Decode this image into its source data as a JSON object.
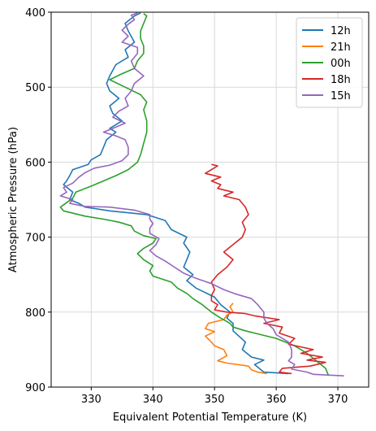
{
  "chart_data": {
    "type": "line",
    "xlabel": "Equivalent Potential Temperature (K)",
    "ylabel": "Atmospheric Pressure (hPa)",
    "xlim": [
      323.5,
      375
    ],
    "ylim": [
      900,
      400
    ],
    "y_inverted": true,
    "grid": true,
    "legend_position": "top-right",
    "xticks": [
      330,
      340,
      350,
      360,
      370
    ],
    "xtick_labels": [
      "330",
      "340",
      "350",
      "360",
      "370"
    ],
    "yticks": [
      400,
      500,
      600,
      700,
      800,
      900
    ],
    "ytick_labels": [
      "400",
      "500",
      "600",
      "700",
      "800",
      "900"
    ],
    "series": [
      {
        "name": "12h",
        "color": "#1f77b4",
        "points": [
          [
            362.0,
            882
          ],
          [
            358.0,
            880
          ],
          [
            356.5,
            870
          ],
          [
            358.0,
            864
          ],
          [
            356.0,
            860
          ],
          [
            354.5,
            850
          ],
          [
            355.0,
            840
          ],
          [
            353.0,
            825
          ],
          [
            353.0,
            815
          ],
          [
            352.0,
            808
          ],
          [
            352.5,
            800
          ],
          [
            351.0,
            790
          ],
          [
            350.0,
            780
          ],
          [
            347.0,
            768
          ],
          [
            345.5,
            758
          ],
          [
            346.5,
            750
          ],
          [
            345.0,
            740
          ],
          [
            345.5,
            730
          ],
          [
            346.0,
            720
          ],
          [
            345.0,
            708
          ],
          [
            345.5,
            700
          ],
          [
            343.0,
            690
          ],
          [
            342.0,
            678
          ],
          [
            339.0,
            670
          ],
          [
            333.0,
            665
          ],
          [
            329.0,
            660
          ],
          [
            328.0,
            655
          ],
          [
            326.5,
            650
          ],
          [
            327.0,
            640
          ],
          [
            325.5,
            630
          ],
          [
            326.0,
            625
          ],
          [
            326.5,
            618
          ],
          [
            327.0,
            610
          ],
          [
            329.5,
            603
          ],
          [
            330.0,
            597
          ],
          [
            331.5,
            590
          ],
          [
            332.0,
            580
          ],
          [
            332.5,
            570
          ],
          [
            334.0,
            560
          ],
          [
            333.0,
            555
          ],
          [
            335.0,
            545
          ],
          [
            333.5,
            535
          ],
          [
            333.0,
            525
          ],
          [
            334.5,
            515
          ],
          [
            333.0,
            505
          ],
          [
            332.5,
            495
          ],
          [
            333.0,
            485
          ],
          [
            334.0,
            470
          ],
          [
            336.0,
            460
          ],
          [
            335.5,
            450
          ],
          [
            337.0,
            440
          ],
          [
            336.0,
            425
          ],
          [
            335.5,
            415
          ],
          [
            337.0,
            405
          ],
          [
            338.0,
            401
          ]
        ]
      },
      {
        "name": "21h",
        "color": "#ff7f0e",
        "points": [
          [
            358.5,
            882
          ],
          [
            357.0,
            880
          ],
          [
            356.0,
            877
          ],
          [
            355.5,
            872
          ],
          [
            352.0,
            868
          ],
          [
            350.5,
            865
          ],
          [
            352.0,
            858
          ],
          [
            351.5,
            850
          ],
          [
            350.0,
            845
          ],
          [
            349.5,
            840
          ],
          [
            348.5,
            832
          ],
          [
            350.0,
            826
          ],
          [
            348.5,
            822
          ],
          [
            349.0,
            815
          ],
          [
            351.5,
            810
          ],
          [
            352.0,
            804
          ],
          [
            353.0,
            800
          ],
          [
            352.5,
            793
          ],
          [
            353.0,
            788
          ]
        ]
      },
      {
        "name": "00h",
        "color": "#2ca02c",
        "points": [
          [
            368.5,
            885
          ],
          [
            368.0,
            875
          ],
          [
            366.5,
            865
          ],
          [
            365.0,
            855
          ],
          [
            363.0,
            845
          ],
          [
            360.0,
            835
          ],
          [
            357.5,
            830
          ],
          [
            355.0,
            825
          ],
          [
            353.0,
            820
          ],
          [
            352.5,
            815
          ],
          [
            351.0,
            808
          ],
          [
            349.5,
            800
          ],
          [
            348.0,
            790
          ],
          [
            346.5,
            782
          ],
          [
            345.5,
            775
          ],
          [
            344.0,
            768
          ],
          [
            343.0,
            760
          ],
          [
            340.0,
            752
          ],
          [
            339.5,
            745
          ],
          [
            340.0,
            738
          ],
          [
            338.5,
            730
          ],
          [
            337.5,
            722
          ],
          [
            338.5,
            715
          ],
          [
            340.0,
            708
          ],
          [
            340.5,
            702
          ],
          [
            338.5,
            698
          ],
          [
            337.0,
            692
          ],
          [
            336.5,
            685
          ],
          [
            334.5,
            680
          ],
          [
            332.0,
            676
          ],
          [
            329.0,
            672
          ],
          [
            325.5,
            665
          ],
          [
            325.0,
            660
          ],
          [
            326.0,
            654
          ],
          [
            327.0,
            648
          ],
          [
            327.5,
            640
          ],
          [
            330.0,
            632
          ],
          [
            332.0,
            625
          ],
          [
            334.0,
            618
          ],
          [
            336.0,
            610
          ],
          [
            337.5,
            600
          ],
          [
            338.0,
            590
          ],
          [
            338.5,
            575
          ],
          [
            339.0,
            560
          ],
          [
            339.0,
            545
          ],
          [
            338.5,
            530
          ],
          [
            339.0,
            520
          ],
          [
            338.0,
            510
          ],
          [
            335.5,
            500
          ],
          [
            333.0,
            490
          ],
          [
            335.0,
            482
          ],
          [
            337.0,
            475
          ],
          [
            337.5,
            465
          ],
          [
            338.5,
            455
          ],
          [
            338.5,
            445
          ],
          [
            338.0,
            435
          ],
          [
            338.0,
            425
          ],
          [
            338.5,
            415
          ],
          [
            339.0,
            405
          ],
          [
            338.5,
            402
          ]
        ]
      },
      {
        "name": "18h",
        "color": "#d62728",
        "points": [
          [
            362.5,
            882
          ],
          [
            360.5,
            880
          ],
          [
            361.0,
            875
          ],
          [
            365.5,
            872
          ],
          [
            368.0,
            867
          ],
          [
            365.0,
            864
          ],
          [
            367.5,
            860
          ],
          [
            364.0,
            855
          ],
          [
            366.0,
            850
          ],
          [
            362.0,
            843
          ],
          [
            363.0,
            835
          ],
          [
            360.5,
            828
          ],
          [
            361.0,
            820
          ],
          [
            358.0,
            815
          ],
          [
            360.5,
            810
          ],
          [
            356.5,
            805
          ],
          [
            355.0,
            802
          ],
          [
            352.0,
            800
          ],
          [
            350.0,
            797
          ],
          [
            350.5,
            790
          ],
          [
            349.5,
            785
          ],
          [
            349.5,
            778
          ],
          [
            350.0,
            770
          ],
          [
            349.5,
            760
          ],
          [
            350.5,
            750
          ],
          [
            352.0,
            740
          ],
          [
            353.0,
            730
          ],
          [
            351.5,
            720
          ],
          [
            353.0,
            710
          ],
          [
            354.5,
            700
          ],
          [
            355.0,
            690
          ],
          [
            354.5,
            680
          ],
          [
            355.5,
            670
          ],
          [
            355.0,
            660
          ],
          [
            354.0,
            650
          ],
          [
            351.5,
            645
          ],
          [
            353.0,
            640
          ],
          [
            350.5,
            635
          ],
          [
            351.0,
            630
          ],
          [
            349.5,
            625
          ],
          [
            351.0,
            620
          ],
          [
            348.5,
            615
          ],
          [
            349.5,
            610
          ],
          [
            350.5,
            605
          ],
          [
            349.5,
            603
          ]
        ]
      },
      {
        "name": "15h",
        "color": "#9467bd",
        "points": [
          [
            371.0,
            885
          ],
          [
            366.0,
            883
          ],
          [
            365.0,
            880
          ],
          [
            362.5,
            876
          ],
          [
            363.0,
            870
          ],
          [
            362.0,
            865
          ],
          [
            362.5,
            860
          ],
          [
            362.5,
            850
          ],
          [
            362.0,
            840
          ],
          [
            360.0,
            830
          ],
          [
            359.5,
            822
          ],
          [
            358.5,
            815
          ],
          [
            358.0,
            808
          ],
          [
            358.0,
            800
          ],
          [
            357.0,
            790
          ],
          [
            356.0,
            782
          ],
          [
            353.5,
            776
          ],
          [
            351.5,
            770
          ],
          [
            349.5,
            762
          ],
          [
            347.0,
            755
          ],
          [
            345.0,
            748
          ],
          [
            343.5,
            740
          ],
          [
            342.0,
            732
          ],
          [
            340.5,
            725
          ],
          [
            339.5,
            718
          ],
          [
            340.5,
            710
          ],
          [
            341.0,
            702
          ],
          [
            339.5,
            695
          ],
          [
            339.5,
            688
          ],
          [
            340.0,
            682
          ],
          [
            339.5,
            676
          ],
          [
            339.5,
            670
          ],
          [
            337.0,
            664
          ],
          [
            333.0,
            660
          ],
          [
            329.0,
            659
          ],
          [
            326.5,
            655
          ],
          [
            327.0,
            650
          ],
          [
            325.0,
            645
          ],
          [
            326.0,
            640
          ],
          [
            325.5,
            634
          ],
          [
            327.0,
            628
          ],
          [
            328.0,
            620
          ],
          [
            329.0,
            614
          ],
          [
            330.5,
            608
          ],
          [
            333.0,
            604
          ],
          [
            335.0,
            598
          ],
          [
            336.0,
            590
          ],
          [
            336.0,
            580
          ],
          [
            335.5,
            570
          ],
          [
            334.0,
            565
          ],
          [
            332.0,
            560
          ],
          [
            333.5,
            555
          ],
          [
            335.5,
            548
          ],
          [
            333.5,
            540
          ],
          [
            334.5,
            532
          ],
          [
            336.0,
            525
          ],
          [
            335.5,
            515
          ],
          [
            336.5,
            505
          ],
          [
            337.0,
            495
          ],
          [
            338.5,
            485
          ],
          [
            337.0,
            475
          ],
          [
            336.5,
            465
          ],
          [
            337.5,
            455
          ],
          [
            337.5,
            447
          ],
          [
            335.0,
            440
          ],
          [
            336.0,
            432
          ],
          [
            335.0,
            424
          ],
          [
            336.0,
            416
          ],
          [
            337.0,
            410
          ],
          [
            336.5,
            404
          ],
          [
            337.5,
            401
          ]
        ]
      }
    ]
  }
}
